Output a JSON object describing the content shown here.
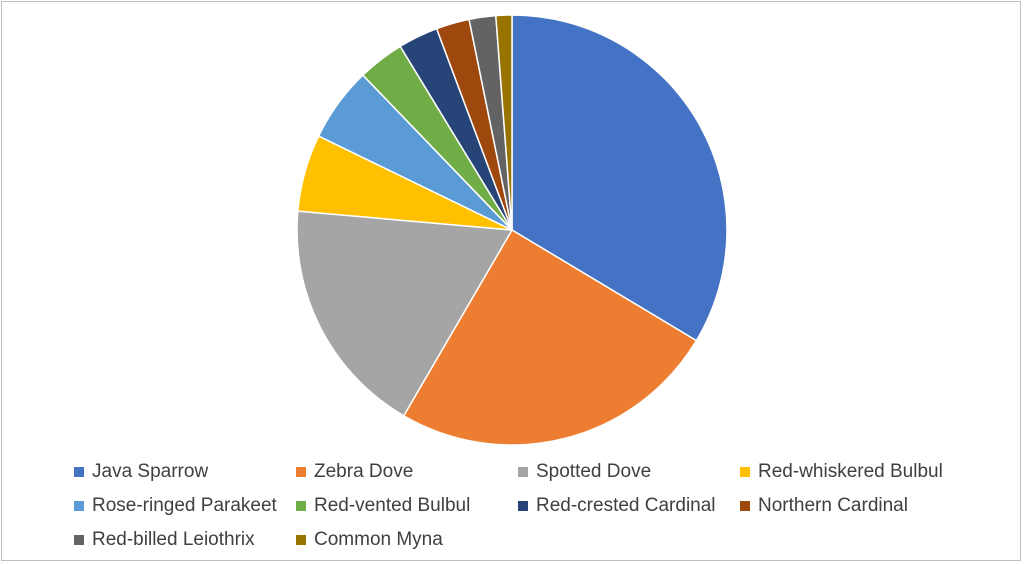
{
  "chart_data": {
    "type": "pie",
    "categories": [
      "Java Sparrow",
      "Zebra Dove",
      "Spotted Dove",
      "Red-whiskered Bulbul",
      "Rose-ringed Parakeet",
      "Red-vented Bulbul",
      "Red-crested Cardinal",
      "Northern Cardinal",
      "Red-billed Leiothrix",
      "Common Myna"
    ],
    "values": [
      33.6,
      24.8,
      18.0,
      5.8,
      5.6,
      3.5,
      3.0,
      2.5,
      2.0,
      1.2
    ],
    "colors": [
      "#4472C4",
      "#ED7D31",
      "#A5A5A5",
      "#FFC000",
      "#5B9BD5",
      "#70AD47",
      "#264478",
      "#9E480E",
      "#636363",
      "#997300"
    ],
    "start_angle": "12 o'clock",
    "direction": "clockwise",
    "legend_position": "bottom"
  }
}
